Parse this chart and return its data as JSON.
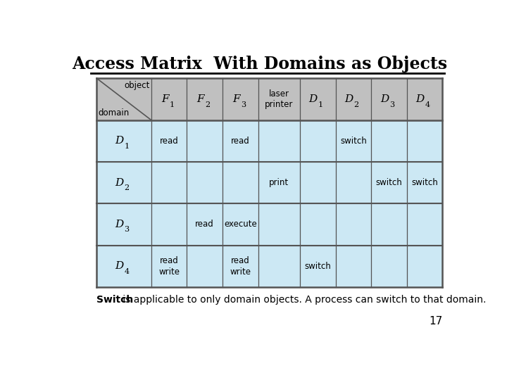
{
  "title": "Access Matrix  With Domains as Objects",
  "subtitle": "Switch is applicable to only domain objects. A process can switch to that domain.",
  "page_number": "17",
  "header_bg": "#c0c0c0",
  "row_bg": "#cce8f4",
  "border_color": "#555555",
  "text_color": "#000000",
  "cols": [
    "",
    "F_1",
    "F_2",
    "F_3",
    "laser\nprinter",
    "D_1",
    "D_2",
    "D_3",
    "D_4"
  ],
  "col_widths": [
    1.3,
    0.85,
    0.85,
    0.85,
    1.0,
    0.85,
    0.85,
    0.85,
    0.85
  ],
  "rows": [
    [
      "read",
      "",
      "read",
      "",
      "",
      "switch",
      "",
      ""
    ],
    [
      "",
      "",
      "",
      "print",
      "",
      "",
      "switch",
      "switch"
    ],
    [
      "",
      "read",
      "execute",
      "",
      "",
      "",
      "",
      ""
    ],
    [
      "read\nwrite",
      "",
      "read\nwrite",
      "",
      "switch",
      "",
      "",
      ""
    ]
  ],
  "row_labels": [
    "D_1",
    "D_2",
    "D_3",
    "D_4"
  ]
}
